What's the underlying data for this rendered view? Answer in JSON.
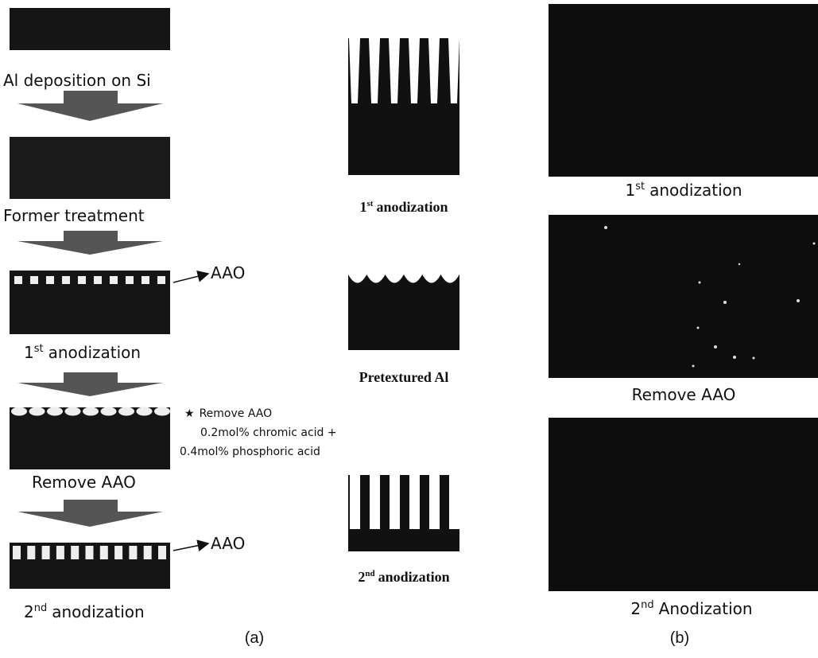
{
  "panel_a": {
    "steps": [
      {
        "text": "Al deposition on Si"
      },
      {
        "text": "Former treatment"
      },
      {
        "num": "1",
        "sup": "st",
        "text": "anodization"
      },
      {
        "text": "Remove AAO"
      },
      {
        "num": "2",
        "sup": "nd",
        "text": "anodization"
      }
    ],
    "aao_labels": [
      "AAO",
      "AAO"
    ],
    "note": {
      "marker": "★",
      "title": "Remove AAO",
      "lines": [
        "0.2mol% chromic acid +",
        "0.4mol% phosphoric acid"
      ]
    },
    "caption": "(a)"
  },
  "schematics": [
    {
      "num": "1",
      "sup": "st",
      "text": "anodization"
    },
    {
      "text": "Pretextured Al"
    },
    {
      "num": "2",
      "sup": "nd",
      "text": "anodization"
    }
  ],
  "panel_b": {
    "images": [
      {
        "num": "1",
        "sup": "st",
        "text": "anodization"
      },
      {
        "text": "Remove AAO"
      },
      {
        "num": "2",
        "sup": "nd",
        "text": "Anodization"
      }
    ],
    "caption": "(b)"
  }
}
